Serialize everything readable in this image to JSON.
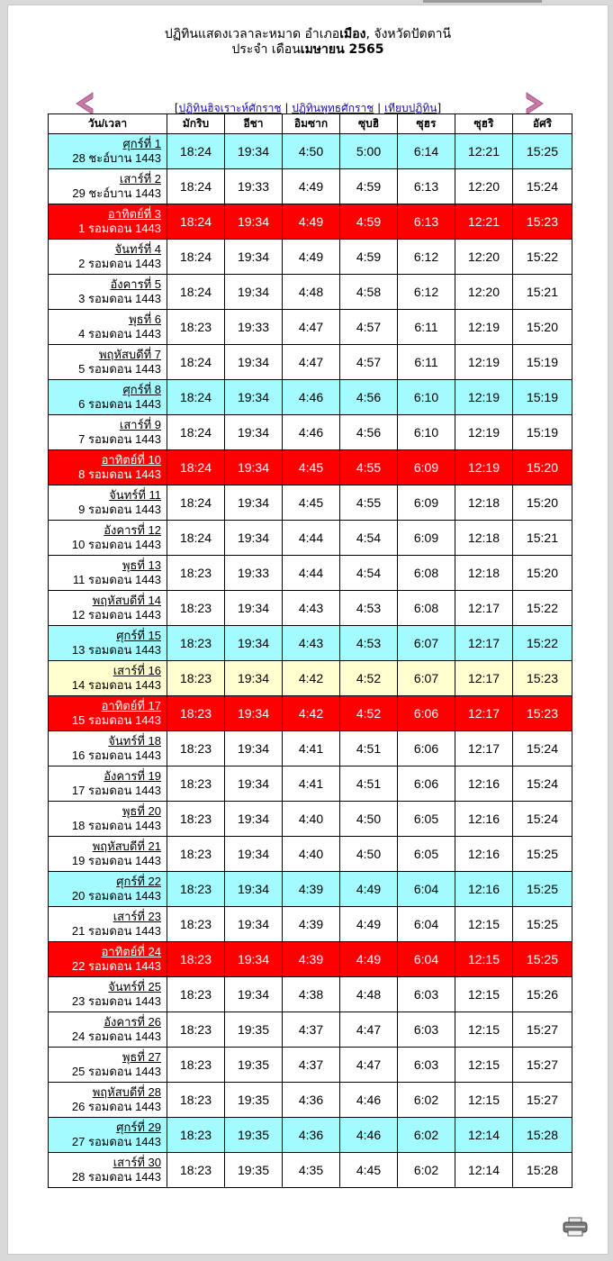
{
  "title": {
    "line1_prefix": "ปฏิทินแสดงเวลาละหมาด อำเภอ",
    "line1_bold": "เมือง",
    "line1_suffix": ",  จังหวัดปัตตานี",
    "line2_prefix": "ประจำ เดือน",
    "line2_bold": "เมษายน 2565"
  },
  "nav": {
    "hijri_link": "ปฏิทินฮิจเราะห์ศักราช",
    "buddhist_link": "ปฏิทินพุทธศักราช",
    "compare_link": "เทียบปฏิทิน",
    "open_bracket": "[",
    "close_bracket": "]",
    "sep": " | "
  },
  "colors": {
    "friday": "#a3fbff",
    "sunday": "#fe0000",
    "today": "#ffffd0",
    "arrow": "#c77aa8"
  },
  "icons": [
    "chevron-left-icon",
    "chevron-right-icon",
    "printer-icon"
  ],
  "table": {
    "headers": [
      "วัน/เวลา",
      "มักริบ",
      "อีชา",
      "อิมซาก",
      "ซุบฮิ",
      "ซุฮร",
      "ซุฮริ",
      "อัศริ"
    ],
    "rows": [
      {
        "day": "ศุกร์ที่ 1",
        "hijri": "28 ชะอ์บาน 1443",
        "times": [
          "18:24",
          "19:34",
          "4:50",
          "5:00",
          "6:14",
          "12:21",
          "15:25"
        ],
        "kind": "fri"
      },
      {
        "day": "เสาร์ที่ 2",
        "hijri": "29 ชะอ์บาน 1443",
        "times": [
          "18:24",
          "19:33",
          "4:49",
          "4:59",
          "6:13",
          "12:20",
          "15:24"
        ],
        "kind": "normal"
      },
      {
        "day": "อาทิตย์ที่ 3",
        "hijri": "1 รอมดอน 1443",
        "times": [
          "18:24",
          "19:34",
          "4:49",
          "4:59",
          "6:13",
          "12:21",
          "15:23"
        ],
        "kind": "sun"
      },
      {
        "day": "จันทร์ที่ 4",
        "hijri": "2 รอมดอน 1443",
        "times": [
          "18:24",
          "19:34",
          "4:49",
          "4:59",
          "6:12",
          "12:20",
          "15:22"
        ],
        "kind": "normal"
      },
      {
        "day": "อังคารที่ 5",
        "hijri": "3 รอมดอน 1443",
        "times": [
          "18:24",
          "19:34",
          "4:48",
          "4:58",
          "6:12",
          "12:20",
          "15:21"
        ],
        "kind": "normal"
      },
      {
        "day": "พุธที่ 6",
        "hijri": "4 รอมดอน 1443",
        "times": [
          "18:23",
          "19:33",
          "4:47",
          "4:57",
          "6:11",
          "12:19",
          "15:20"
        ],
        "kind": "normal"
      },
      {
        "day": "พฤหัสบดีที่ 7",
        "hijri": "5 รอมดอน 1443",
        "times": [
          "18:24",
          "19:34",
          "4:47",
          "4:57",
          "6:11",
          "12:19",
          "15:19"
        ],
        "kind": "normal"
      },
      {
        "day": "ศุกร์ที่ 8",
        "hijri": "6 รอมดอน 1443",
        "times": [
          "18:24",
          "19:34",
          "4:46",
          "4:56",
          "6:10",
          "12:19",
          "15:19"
        ],
        "kind": "fri"
      },
      {
        "day": "เสาร์ที่ 9",
        "hijri": "7 รอมดอน 1443",
        "times": [
          "18:24",
          "19:34",
          "4:46",
          "4:56",
          "6:10",
          "12:19",
          "15:19"
        ],
        "kind": "normal"
      },
      {
        "day": "อาทิตย์ที่ 10",
        "hijri": "8 รอมดอน 1443",
        "times": [
          "18:24",
          "19:34",
          "4:45",
          "4:55",
          "6:09",
          "12:19",
          "15:20"
        ],
        "kind": "sun"
      },
      {
        "day": "จันทร์ที่ 11",
        "hijri": "9 รอมดอน 1443",
        "times": [
          "18:24",
          "19:34",
          "4:45",
          "4:55",
          "6:09",
          "12:18",
          "15:20"
        ],
        "kind": "normal"
      },
      {
        "day": "อังคารที่ 12",
        "hijri": "10 รอมดอน 1443",
        "times": [
          "18:24",
          "19:34",
          "4:44",
          "4:54",
          "6:09",
          "12:18",
          "15:21"
        ],
        "kind": "normal"
      },
      {
        "day": "พุธที่ 13",
        "hijri": "11 รอมดอน 1443",
        "times": [
          "18:23",
          "19:33",
          "4:44",
          "4:54",
          "6:08",
          "12:18",
          "15:20"
        ],
        "kind": "normal"
      },
      {
        "day": "พฤหัสบดีที่ 14",
        "hijri": "12 รอมดอน 1443",
        "times": [
          "18:23",
          "19:34",
          "4:43",
          "4:53",
          "6:08",
          "12:17",
          "15:22"
        ],
        "kind": "normal"
      },
      {
        "day": "ศุกร์ที่ 15",
        "hijri": "13 รอมดอน 1443",
        "times": [
          "18:23",
          "19:34",
          "4:43",
          "4:53",
          "6:07",
          "12:17",
          "15:22"
        ],
        "kind": "fri"
      },
      {
        "day": "เสาร์ที่ 16",
        "hijri": "14 รอมดอน 1443",
        "times": [
          "18:23",
          "19:34",
          "4:42",
          "4:52",
          "6:07",
          "12:17",
          "15:23"
        ],
        "kind": "today"
      },
      {
        "day": "อาทิตย์ที่ 17",
        "hijri": "15 รอมดอน 1443",
        "times": [
          "18:23",
          "19:34",
          "4:42",
          "4:52",
          "6:06",
          "12:17",
          "15:23"
        ],
        "kind": "sun"
      },
      {
        "day": "จันทร์ที่ 18",
        "hijri": "16 รอมดอน 1443",
        "times": [
          "18:23",
          "19:34",
          "4:41",
          "4:51",
          "6:06",
          "12:17",
          "15:24"
        ],
        "kind": "normal"
      },
      {
        "day": "อังคารที่ 19",
        "hijri": "17 รอมดอน 1443",
        "times": [
          "18:23",
          "19:34",
          "4:41",
          "4:51",
          "6:06",
          "12:16",
          "15:24"
        ],
        "kind": "normal"
      },
      {
        "day": "พุธที่ 20",
        "hijri": "18 รอมดอน 1443",
        "times": [
          "18:23",
          "19:34",
          "4:40",
          "4:50",
          "6:05",
          "12:16",
          "15:24"
        ],
        "kind": "normal"
      },
      {
        "day": "พฤหัสบดีที่ 21",
        "hijri": "19 รอมดอน 1443",
        "times": [
          "18:23",
          "19:34",
          "4:40",
          "4:50",
          "6:05",
          "12:16",
          "15:25"
        ],
        "kind": "normal"
      },
      {
        "day": "ศุกร์ที่ 22",
        "hijri": "20 รอมดอน 1443",
        "times": [
          "18:23",
          "19:34",
          "4:39",
          "4:49",
          "6:04",
          "12:16",
          "15:25"
        ],
        "kind": "fri"
      },
      {
        "day": "เสาร์ที่ 23",
        "hijri": "21 รอมดอน 1443",
        "times": [
          "18:23",
          "19:34",
          "4:39",
          "4:49",
          "6:04",
          "12:15",
          "15:25"
        ],
        "kind": "normal"
      },
      {
        "day": "อาทิตย์ที่ 24",
        "hijri": "22 รอมดอน 1443",
        "times": [
          "18:23",
          "19:34",
          "4:39",
          "4:49",
          "6:04",
          "12:15",
          "15:25"
        ],
        "kind": "sun"
      },
      {
        "day": "จันทร์ที่ 25",
        "hijri": "23 รอมดอน 1443",
        "times": [
          "18:23",
          "19:34",
          "4:38",
          "4:48",
          "6:03",
          "12:15",
          "15:26"
        ],
        "kind": "normal"
      },
      {
        "day": "อังคารที่ 26",
        "hijri": "24 รอมดอน 1443",
        "times": [
          "18:23",
          "19:35",
          "4:37",
          "4:47",
          "6:03",
          "12:15",
          "15:27"
        ],
        "kind": "normal"
      },
      {
        "day": "พุธที่ 27",
        "hijri": "25 รอมดอน 1443",
        "times": [
          "18:23",
          "19:35",
          "4:37",
          "4:47",
          "6:03",
          "12:15",
          "15:27"
        ],
        "kind": "normal"
      },
      {
        "day": "พฤหัสบดีที่ 28",
        "hijri": "26 รอมดอน 1443",
        "times": [
          "18:23",
          "19:35",
          "4:36",
          "4:46",
          "6:02",
          "12:15",
          "15:27"
        ],
        "kind": "normal"
      },
      {
        "day": "ศุกร์ที่ 29",
        "hijri": "27 รอมดอน 1443",
        "times": [
          "18:23",
          "19:35",
          "4:36",
          "4:46",
          "6:02",
          "12:14",
          "15:28"
        ],
        "kind": "fri"
      },
      {
        "day": "เสาร์ที่ 30",
        "hijri": "28 รอมดอน 1443",
        "times": [
          "18:23",
          "19:35",
          "4:35",
          "4:45",
          "6:02",
          "12:14",
          "15:28"
        ],
        "kind": "normal"
      }
    ]
  }
}
